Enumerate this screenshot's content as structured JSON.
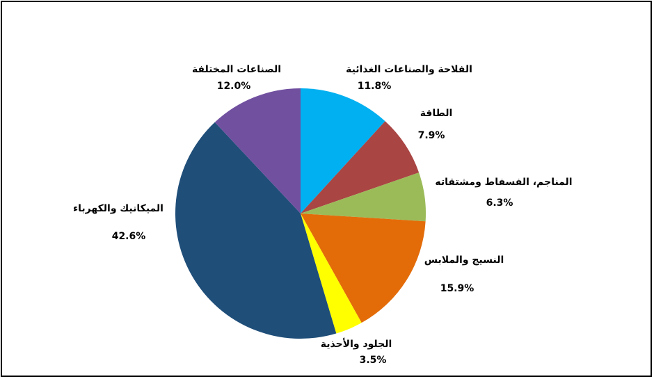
{
  "chart_data": {
    "type": "pie",
    "categories": [
      "الفلاحة والصناعات الغذائية",
      "الطاقة",
      "المناجم، الفسفاط ومشتقاته",
      "النسيج والملابس",
      "الجلود والأحذية",
      "الميكانيك والكهرباء",
      "الصناعات المختلفة"
    ],
    "values": [
      11.8,
      7.9,
      6.3,
      15.9,
      3.5,
      42.6,
      12.0
    ],
    "value_labels": [
      "11.8%",
      "7.9%",
      "6.3%",
      "15.9%",
      "3.5%",
      "42.6%",
      "12.0%"
    ],
    "colors": [
      "#00b0f0",
      "#a94543",
      "#9bbb59",
      "#e36c09",
      "#ffff00",
      "#1f4e79",
      "#7150a0"
    ]
  }
}
